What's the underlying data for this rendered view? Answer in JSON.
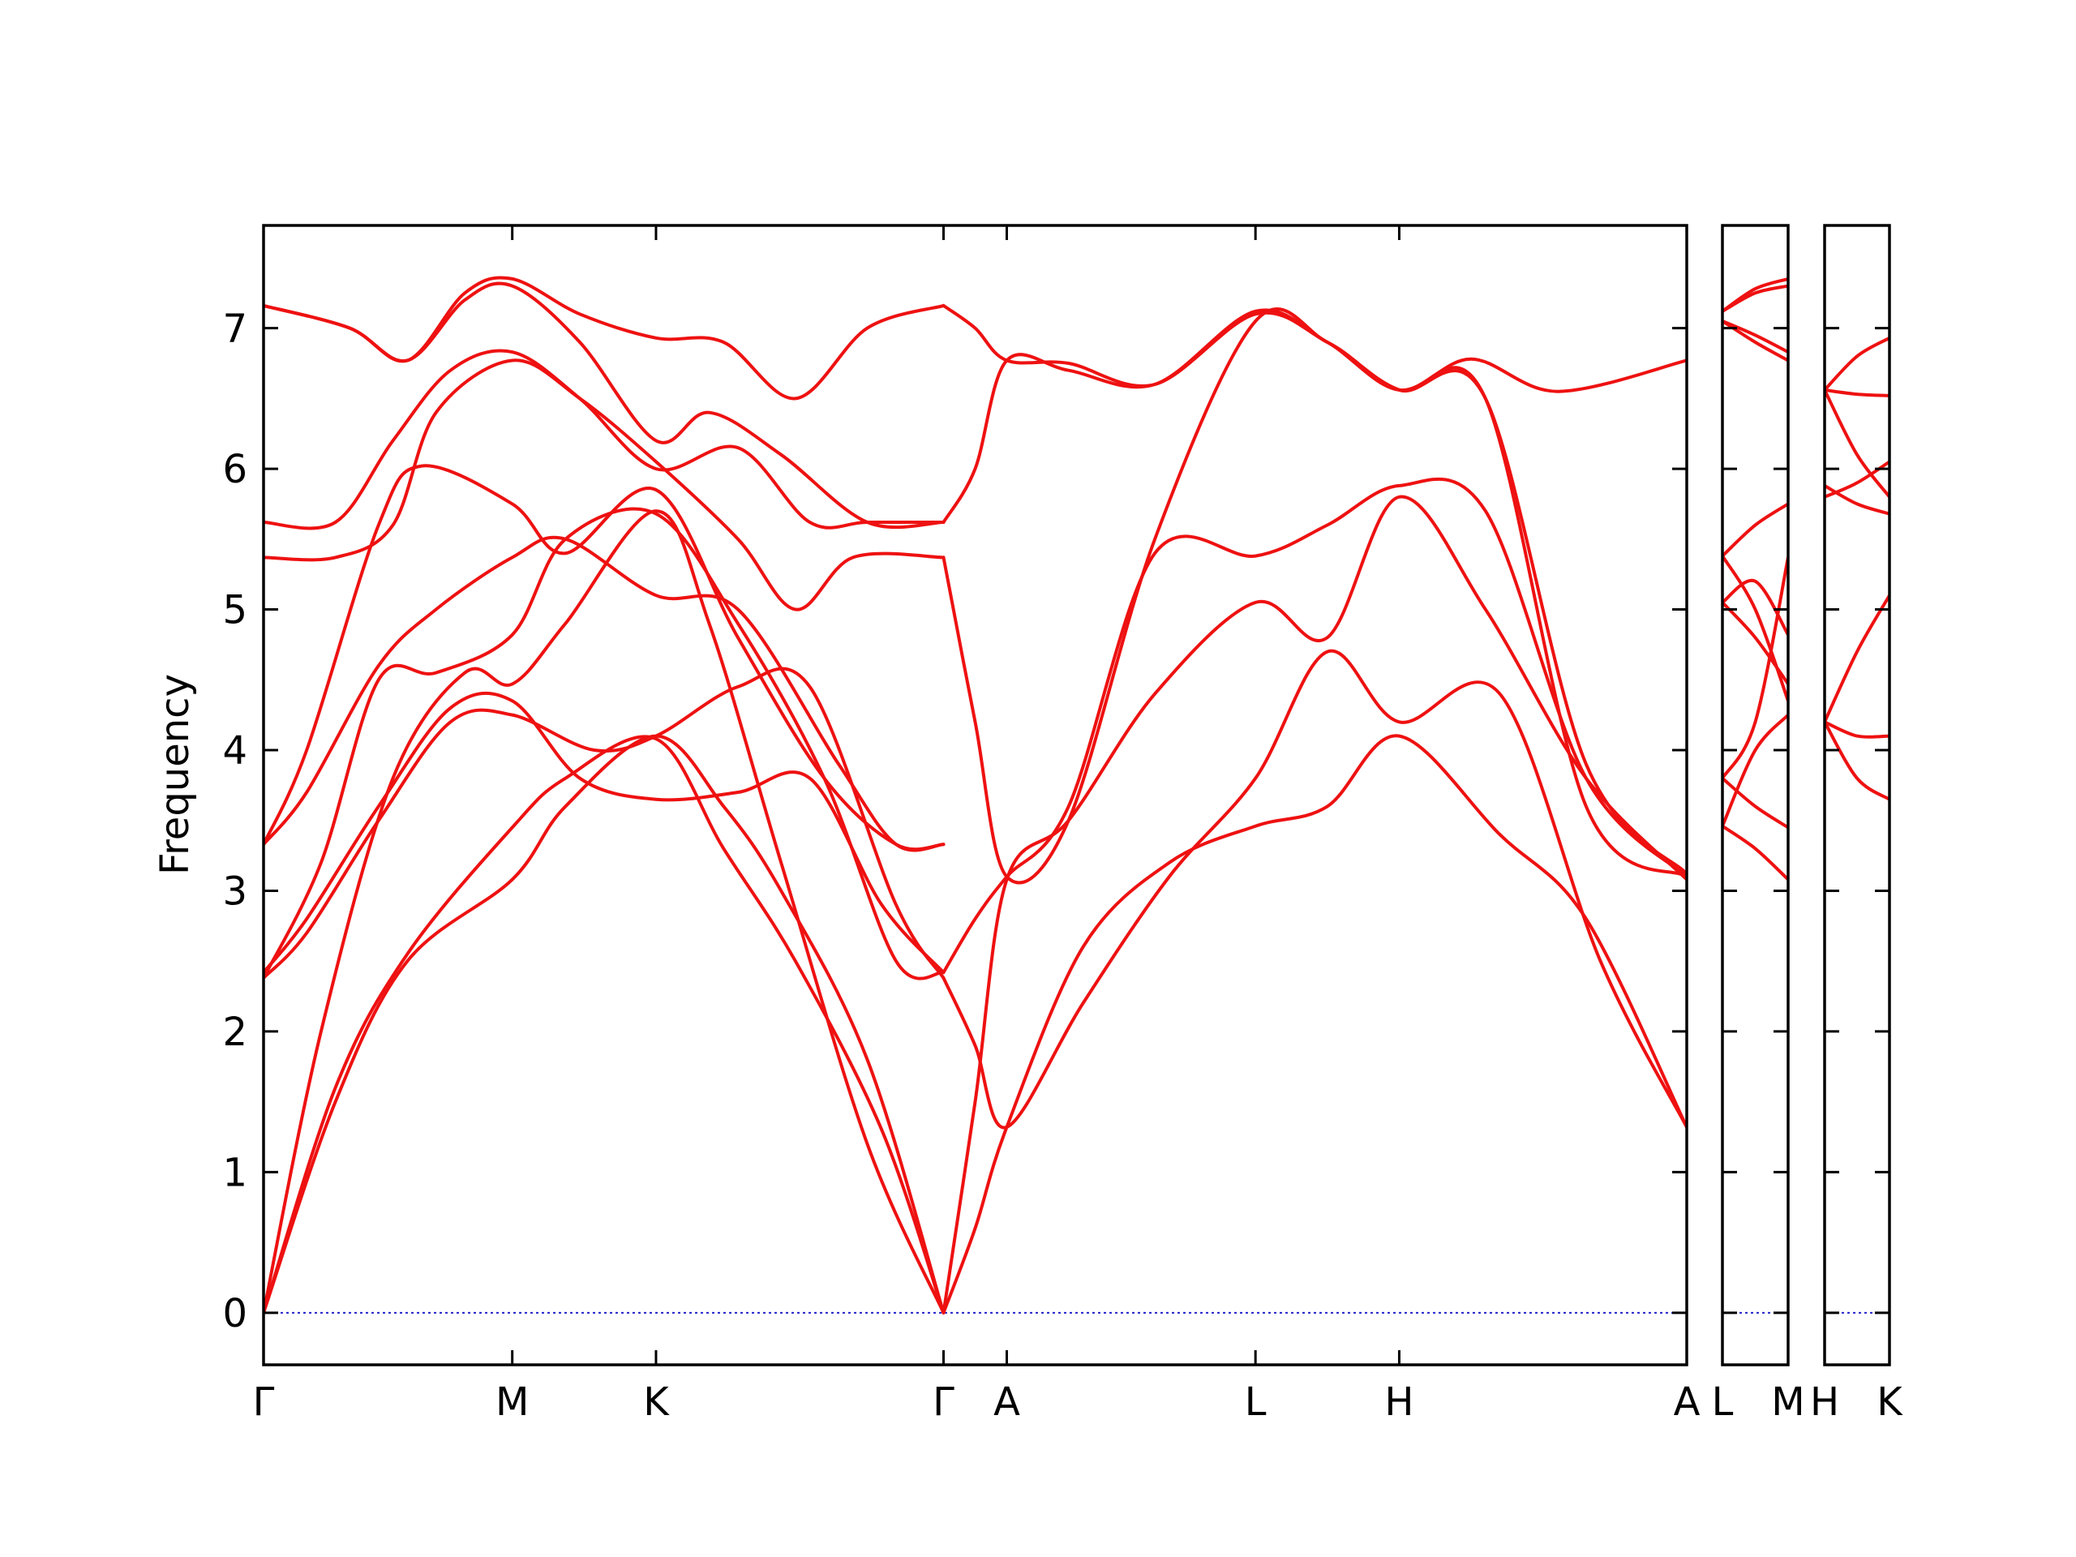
{
  "chart_data": {
    "type": "line",
    "title": "",
    "xlabel": "",
    "ylabel": "Frequency",
    "ylim": [
      -0.37,
      7.73
    ],
    "yticks": [
      0,
      1,
      2,
      3,
      4,
      5,
      6,
      7
    ],
    "grid": false,
    "legend": "none",
    "colors": {
      "bands": "#ee1111",
      "zero_line": "#2222cc",
      "frame": "#000000"
    },
    "panels": [
      {
        "labels": [
          "Γ",
          "M",
          "K",
          "Γ",
          "A",
          "L",
          "H",
          "A"
        ],
        "x": [
          0,
          1.73,
          2.73,
          4.73,
          5.17,
          6.9,
          7.9,
          9.9
        ],
        "series": [
          {
            "name": "",
            "x": [
              0,
              0.5,
              1.0,
              1.73,
              2.1,
              2.73,
              3.2,
              3.6,
              4.2,
              4.73
            ],
            "y": [
              0,
              1.5,
              2.5,
              3.08,
              3.6,
              4.1,
              3.6,
              3.0,
              1.8,
              0
            ]
          },
          {
            "name": "",
            "x": [
              0,
              0.5,
              1.0,
              1.73,
              2.1,
              2.73,
              3.2,
              3.7,
              4.3,
              4.73
            ],
            "y": [
              0,
              1.6,
              2.55,
              3.45,
              3.8,
              4.08,
              3.3,
              2.5,
              1.3,
              0
            ]
          },
          {
            "name": "",
            "x": [
              0,
              0.4,
              0.9,
              1.4,
              1.73,
              2.1,
              2.73,
              3.1,
              3.6,
              4.2,
              4.73
            ],
            "y": [
              0,
              2.0,
              3.8,
              4.55,
              4.47,
              4.9,
              5.7,
              4.9,
              3.2,
              1.2,
              0
            ]
          },
          {
            "name": "",
            "x": [
              0,
              0.3,
              0.8,
              1.3,
              1.73,
              2.3,
              2.73,
              3.3,
              3.8,
              4.4,
              4.73
            ],
            "y": [
              2.38,
              2.7,
              3.5,
              4.2,
              4.25,
              4.0,
              4.1,
              4.45,
              4.45,
              2.9,
              2.38
            ]
          },
          {
            "name": "",
            "x": [
              0,
              0.3,
              0.8,
              1.3,
              1.73,
              2.2,
              2.73,
              3.3,
              3.8,
              4.3,
              4.73
            ],
            "y": [
              2.42,
              2.8,
              3.6,
              4.3,
              4.35,
              3.8,
              3.65,
              3.7,
              3.8,
              2.9,
              2.42
            ]
          },
          {
            "name": "",
            "x": [
              0,
              0.4,
              0.8,
              1.2,
              1.73,
              2.1,
              2.73,
              3.3,
              3.9,
              4.4,
              4.73
            ],
            "y": [
              2.38,
              3.2,
              4.5,
              4.55,
              4.82,
              5.5,
              5.68,
              4.9,
              3.8,
              2.5,
              2.42
            ]
          },
          {
            "name": "",
            "x": [
              0,
              0.3,
              0.8,
              1.2,
              1.73,
              2.1,
              2.73,
              3.3,
              4.0,
              4.4,
              4.73
            ],
            "y": [
              3.33,
              3.7,
              4.6,
              5.0,
              5.37,
              5.5,
              5.1,
              5.0,
              3.9,
              3.33,
              3.33
            ]
          },
          {
            "name": "",
            "x": [
              0,
              0.3,
              0.8,
              1.1,
              1.73,
              2.1,
              2.73,
              3.3,
              3.9,
              4.4,
              4.73
            ],
            "y": [
              3.33,
              4.0,
              5.6,
              6.02,
              5.75,
              5.4,
              5.85,
              4.8,
              3.8,
              3.33,
              3.33
            ]
          },
          {
            "name": "",
            "x": [
              0,
              0.5,
              0.9,
              1.2,
              1.73,
              2.2,
              2.73,
              3.3,
              3.7,
              4.1,
              4.73
            ],
            "y": [
              5.37,
              5.37,
              5.6,
              6.4,
              6.77,
              6.5,
              6.05,
              5.5,
              5.0,
              5.37,
              5.37
            ]
          },
          {
            "name": "",
            "x": [
              0,
              0.5,
              0.9,
              1.3,
              1.73,
              2.2,
              2.73,
              3.3,
              3.8,
              4.2,
              4.73
            ],
            "y": [
              5.62,
              5.62,
              6.2,
              6.7,
              6.83,
              6.5,
              6.0,
              6.15,
              5.62,
              5.62,
              5.62
            ]
          },
          {
            "name": "",
            "x": [
              0,
              0.6,
              1.0,
              1.4,
              1.73,
              2.2,
              2.73,
              3.1,
              3.6,
              4.2,
              4.73
            ],
            "y": [
              7.16,
              7.0,
              6.77,
              7.2,
              7.3,
              6.9,
              6.2,
              6.4,
              6.1,
              5.62,
              5.62
            ]
          },
          {
            "name": "",
            "x": [
              0,
              0.6,
              1.0,
              1.4,
              1.73,
              2.2,
              2.73,
              3.2,
              3.7,
              4.2,
              4.73
            ],
            "y": [
              7.16,
              7.0,
              6.77,
              7.25,
              7.35,
              7.1,
              6.93,
              6.9,
              6.5,
              7.0,
              7.16
            ]
          },
          {
            "name": "",
            "x": [
              4.73,
              4.95,
              5.17,
              5.7,
              6.3,
              6.9,
              7.4,
              7.9,
              8.6,
              9.2,
              9.9
            ],
            "y": [
              0,
              0.6,
              1.32,
              2.6,
              3.2,
              3.46,
              3.6,
              4.1,
              3.4,
              2.8,
              1.32
            ]
          },
          {
            "name": "",
            "x": [
              4.73,
              4.95,
              5.17,
              5.7,
              6.3,
              6.9,
              7.4,
              7.9,
              8.6,
              9.3,
              9.9
            ],
            "y": [
              2.38,
              1.9,
              1.32,
              2.2,
              3.1,
              3.8,
              4.7,
              4.2,
              4.4,
              2.5,
              1.32
            ]
          },
          {
            "name": "",
            "x": [
              4.73,
              4.95,
              5.17,
              5.6,
              6.2,
              6.9,
              7.4,
              7.9,
              8.5,
              9.2,
              9.9
            ],
            "y": [
              0,
              1.5,
              3.08,
              3.5,
              4.4,
              5.05,
              4.8,
              5.8,
              5.0,
              3.8,
              3.08
            ]
          },
          {
            "name": "",
            "x": [
              4.73,
              4.95,
              5.17,
              5.6,
              6.2,
              6.9,
              7.4,
              7.9,
              8.5,
              9.2,
              9.9
            ],
            "y": [
              2.42,
              2.8,
              3.1,
              3.6,
              5.4,
              5.38,
              5.6,
              5.88,
              5.7,
              3.8,
              3.1
            ]
          },
          {
            "name": "",
            "x": [
              4.73,
              4.95,
              5.17,
              5.6,
              6.2,
              6.9,
              7.4,
              7.9,
              8.5,
              9.2,
              9.9
            ],
            "y": [
              5.37,
              4.2,
              3.1,
              3.5,
              5.5,
              7.05,
              6.9,
              6.56,
              6.5,
              3.9,
              3.12
            ]
          },
          {
            "name": "",
            "x": [
              4.73,
              4.95,
              5.17,
              5.6,
              6.2,
              6.9,
              7.4,
              7.9,
              8.4,
              9.0,
              9.9
            ],
            "y": [
              5.62,
              6.0,
              6.77,
              6.7,
              6.6,
              7.12,
              6.9,
              6.56,
              6.78,
              6.55,
              6.77
            ]
          },
          {
            "name": "",
            "x": [
              4.73,
              4.95,
              5.17,
              5.6,
              6.2,
              6.9,
              7.4,
              7.9,
              8.5,
              9.2,
              9.9
            ],
            "y": [
              7.16,
              7.0,
              6.77,
              6.75,
              6.6,
              7.1,
              6.9,
              6.56,
              6.5,
              3.6,
              3.1
            ]
          }
        ]
      },
      {
        "labels": [
          "L",
          "M"
        ],
        "x": [
          0,
          1
        ],
        "series": [
          {
            "name": "",
            "x": [
              0,
              0.5,
              1
            ],
            "y": [
              3.46,
              3.3,
              3.08
            ]
          },
          {
            "name": "",
            "x": [
              0,
              0.5,
              1
            ],
            "y": [
              3.8,
              3.6,
              3.45
            ]
          },
          {
            "name": "",
            "x": [
              0,
              0.5,
              1
            ],
            "y": [
              5.05,
              4.8,
              4.47
            ]
          },
          {
            "name": "",
            "x": [
              0,
              0.5,
              1
            ],
            "y": [
              5.38,
              5.0,
              4.35
            ]
          },
          {
            "name": "",
            "x": [
              0,
              0.5,
              1
            ],
            "y": [
              5.05,
              5.2,
              4.82
            ]
          },
          {
            "name": "",
            "x": [
              0,
              0.5,
              1
            ],
            "y": [
              3.46,
              4.0,
              4.25
            ]
          },
          {
            "name": "",
            "x": [
              0,
              0.5,
              1
            ],
            "y": [
              3.8,
              4.2,
              5.37
            ]
          },
          {
            "name": "",
            "x": [
              0,
              0.5,
              1
            ],
            "y": [
              5.38,
              5.6,
              5.75
            ]
          },
          {
            "name": "",
            "x": [
              0,
              0.5,
              1
            ],
            "y": [
              7.05,
              6.9,
              6.77
            ]
          },
          {
            "name": "",
            "x": [
              0,
              0.5,
              1
            ],
            "y": [
              7.05,
              6.95,
              6.83
            ]
          },
          {
            "name": "",
            "x": [
              0,
              0.5,
              1
            ],
            "y": [
              7.12,
              7.25,
              7.3
            ]
          },
          {
            "name": "",
            "x": [
              0,
              0.5,
              1
            ],
            "y": [
              7.12,
              7.28,
              7.35
            ]
          }
        ]
      },
      {
        "labels": [
          "H",
          "K"
        ],
        "x": [
          0,
          1
        ],
        "series": [
          {
            "name": "",
            "x": [
              0,
              0.5,
              1
            ],
            "y": [
              4.2,
              4.1,
              4.1
            ]
          },
          {
            "name": "",
            "x": [
              0,
              0.5,
              1
            ],
            "y": [
              4.2,
              3.8,
              3.65
            ]
          },
          {
            "name": "",
            "x": [
              0,
              0.5,
              1
            ],
            "y": [
              4.2,
              4.7,
              5.1
            ]
          },
          {
            "name": "",
            "x": [
              0,
              0.5,
              1
            ],
            "y": [
              5.8,
              5.9,
              6.05
            ]
          },
          {
            "name": "",
            "x": [
              0,
              0.5,
              1
            ],
            "y": [
              5.88,
              5.75,
              5.68
            ]
          },
          {
            "name": "",
            "x": [
              0,
              0.5,
              1
            ],
            "y": [
              6.56,
              6.1,
              5.8
            ]
          },
          {
            "name": "",
            "x": [
              0,
              0.5,
              1
            ],
            "y": [
              6.56,
              6.53,
              6.52
            ]
          },
          {
            "name": "",
            "x": [
              0,
              0.5,
              1
            ],
            "y": [
              6.56,
              6.8,
              6.93
            ]
          }
        ]
      }
    ]
  }
}
